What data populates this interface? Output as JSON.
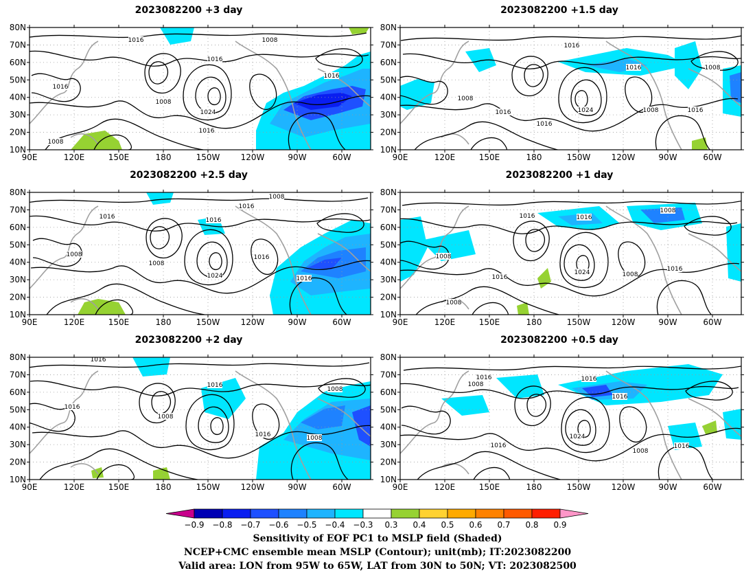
{
  "panels": [
    {
      "id": "p1",
      "title": "2023082200  +3 day",
      "contour_labels": [
        "1016",
        "1008",
        "1016",
        "1016",
        "1016",
        "1008",
        "1024",
        "1016",
        "1008"
      ],
      "shading_note": "strong negative sensitivity over eastern North America"
    },
    {
      "id": "p2",
      "title": "2023082200  +1.5 day",
      "contour_labels": [
        "1016",
        "1016",
        "1008",
        "1008",
        "1016",
        "1024",
        "1016",
        "1008",
        "1016"
      ]
    },
    {
      "id": "p3",
      "title": "2023082200  +2.5 day",
      "contour_labels": [
        "1016",
        "1008",
        "1016",
        "1016",
        "1008",
        "1008",
        "1024",
        "1016",
        "1016"
      ]
    },
    {
      "id": "p4",
      "title": "2023082200  +1 day",
      "contour_labels": [
        "1016",
        "1016",
        "1008",
        "1008",
        "1016",
        "1024",
        "1008",
        "1016",
        "1008"
      ]
    },
    {
      "id": "p5",
      "title": "2023082200  +2 day",
      "contour_labels": [
        "1016",
        "1016",
        "1008",
        "1016",
        "1008",
        "1016",
        "1008"
      ]
    },
    {
      "id": "p6",
      "title": "2023082200  +0.5 day",
      "contour_labels": [
        "1016",
        "1008",
        "1016",
        "1016",
        "1024",
        "1016",
        "1008",
        "1016"
      ]
    }
  ],
  "lat_ticks": [
    "80N",
    "70N",
    "60N",
    "50N",
    "40N",
    "30N",
    "20N",
    "10N"
  ],
  "lon_ticks": [
    "90E",
    "120E",
    "150E",
    "180",
    "150W",
    "120W",
    "90W",
    "60W"
  ],
  "colorbar": {
    "colors": [
      "#c8008c",
      "#0000b4",
      "#0a1ef0",
      "#1e50ff",
      "#1e82ff",
      "#1eb4ff",
      "#00e6ff",
      "#ffffff",
      "#96d232",
      "#ffd232",
      "#ffaa00",
      "#ff8200",
      "#ff5a00",
      "#ff1e00",
      "#ff96c8"
    ],
    "labels": [
      "−0.9",
      "−0.8",
      "−0.7",
      "−0.6",
      "−0.5",
      "−0.4",
      "−0.3",
      "0.3",
      "0.4",
      "0.5",
      "0.6",
      "0.7",
      "0.8",
      "0.9"
    ]
  },
  "caption": {
    "line1": "Sensitivity of EOF PC1 to MSLP field (Shaded)",
    "line2": "NCEP+CMC ensemble mean MSLP (Contour); unit(mb); IT:2023082200",
    "line3": "Valid area: LON from 95W to 65W, LAT from 30N to 50N; VT: 2023082500"
  }
}
